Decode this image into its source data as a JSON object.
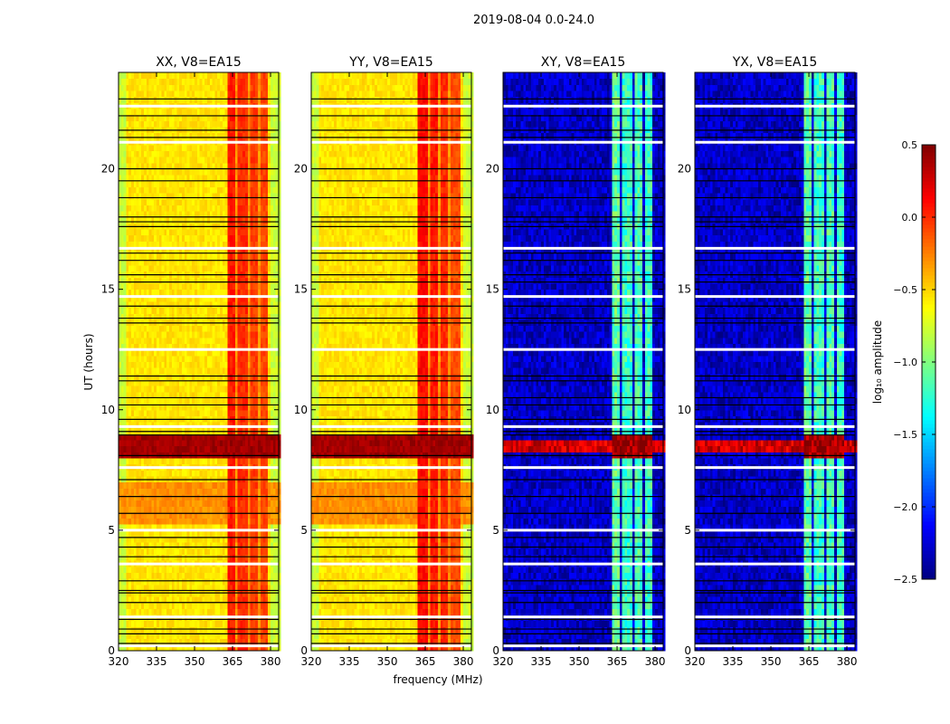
{
  "chart_data": {
    "type": "heatmap",
    "title": "2019-08-04 0.0-24.0",
    "xlabel": "frequency (MHz)",
    "ylabel": "UT (hours)",
    "xlim": [
      320,
      383.2
    ],
    "ylim": [
      0,
      24
    ],
    "xticks": [
      320,
      335,
      350,
      365,
      380
    ],
    "yticks": [
      0,
      5,
      10,
      15,
      20
    ],
    "colorbar": {
      "label": "log₁₀ amplitude",
      "range": [
        -2.5,
        0.5
      ],
      "ticks": [
        -2.5,
        -2.0,
        -1.5,
        -1.0,
        -0.5,
        0.0,
        0.5
      ],
      "tick_labels": [
        "−2.5",
        "−2.0",
        "−1.5",
        "−1.0",
        "−0.5",
        "0.0",
        "0.5"
      ],
      "colormap": "jet"
    },
    "panels": [
      {
        "title": "XX, V8=EA15",
        "base": -0.55,
        "edge_level": -0.78,
        "noise": 0.08,
        "band_segments": [
          [
            363,
            366.5,
            0.05
          ],
          [
            367.5,
            371,
            0.0
          ],
          [
            372,
            375,
            -0.05
          ],
          [
            376,
            379.5,
            -0.08
          ]
        ],
        "band_gap_level": -0.3,
        "time_features": [
          {
            "from": 5.3,
            "to": 7.0,
            "level": -0.3,
            "scope": "background"
          },
          {
            "from": 8.1,
            "to": 8.9,
            "level": 0.4,
            "scope": "all"
          }
        ]
      },
      {
        "title": "YY, V8=EA15",
        "base": -0.55,
        "edge_level": -0.78,
        "noise": 0.08,
        "band_segments": [
          [
            362,
            366,
            0.1
          ],
          [
            367,
            370.5,
            0.05
          ],
          [
            371.5,
            374.5,
            0.0
          ],
          [
            375.5,
            379,
            -0.1
          ]
        ],
        "band_gap_level": -0.3,
        "time_features": [
          {
            "from": 5.3,
            "to": 7.0,
            "level": -0.3,
            "scope": "background"
          },
          {
            "from": 8.1,
            "to": 8.9,
            "level": 0.4,
            "scope": "all"
          }
        ]
      },
      {
        "title": "XY, V8=EA15",
        "base": -2.3,
        "edge_level": -2.3,
        "noise": 0.2,
        "band_segments": [
          [
            363,
            366.5,
            -1.1
          ],
          [
            367.5,
            371,
            -1.2
          ],
          [
            372,
            375,
            -1.15
          ],
          [
            376,
            379.5,
            -1.2
          ]
        ],
        "band_gap_level": -2.3,
        "time_features": [
          {
            "from": 7.9,
            "to": 8.1,
            "level": -1.0,
            "scope": "background"
          },
          {
            "from": 8.2,
            "to": 8.75,
            "level": 0.25,
            "scope": "all"
          },
          {
            "from": 8.1,
            "to": 8.9,
            "level": 0.4,
            "scope": "band"
          }
        ]
      },
      {
        "title": "YX, V8=EA15",
        "base": -2.3,
        "edge_level": -2.3,
        "noise": 0.2,
        "band_segments": [
          [
            363,
            366.5,
            -1.1
          ],
          [
            367.5,
            371,
            -1.2
          ],
          [
            372,
            375,
            -1.15
          ],
          [
            376,
            379.5,
            -1.2
          ]
        ],
        "band_gap_level": -2.3,
        "time_features": [
          {
            "from": 7.9,
            "to": 8.1,
            "level": -1.0,
            "scope": "background"
          },
          {
            "from": 8.2,
            "to": 8.75,
            "level": 0.25,
            "scope": "all"
          },
          {
            "from": 8.1,
            "to": 8.9,
            "level": 0.4,
            "scope": "band"
          }
        ]
      }
    ],
    "flagged_rows_white": [
      22.6,
      21.1,
      16.7,
      14.7,
      12.5,
      9.3,
      7.6,
      5.0,
      3.6,
      1.4,
      0.2
    ],
    "flagged_rows_black": [
      22.9,
      22.2,
      21.6,
      21.3,
      20.0,
      19.5,
      18.8,
      18.0,
      17.8,
      17.6,
      16.5,
      16.2,
      15.6,
      15.3,
      14.3,
      13.8,
      13.6,
      11.4,
      11.2,
      10.5,
      10.2,
      9.6,
      9.1,
      8.95,
      8.1,
      7.1,
      6.4,
      5.7,
      4.7,
      4.3,
      3.9,
      2.9,
      2.5,
      2.4,
      2.0,
      1.3,
      0.9,
      0.7,
      0.3
    ]
  }
}
